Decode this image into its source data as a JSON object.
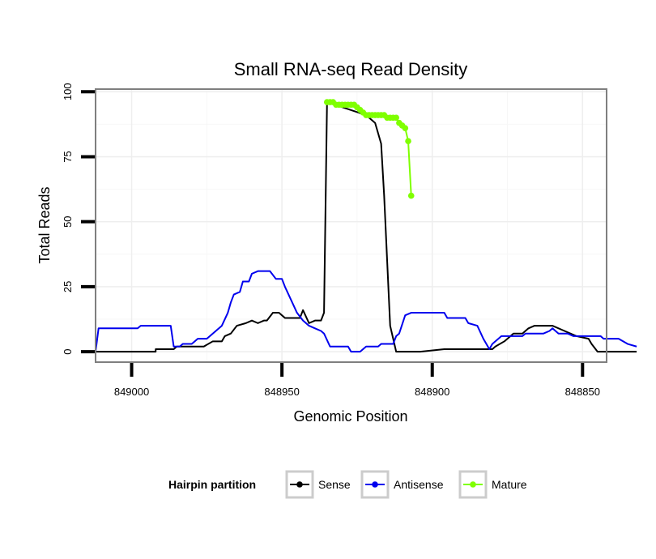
{
  "chart_data": {
    "type": "line",
    "title": "Small RNA-seq Read Density",
    "xlabel": "Genomic Position",
    "ylabel": "Total Reads",
    "x_reversed": true,
    "xlim": [
      849012,
      848842
    ],
    "ylim": [
      -4,
      101
    ],
    "x_ticks": [
      849000,
      848950,
      848900,
      848850
    ],
    "x_tick_labels": [
      "849000",
      "848950",
      "848900",
      "848850"
    ],
    "y_ticks": [
      0,
      25,
      50,
      75,
      100
    ],
    "y_tick_labels": [
      "0",
      "25",
      "50",
      "75",
      "100"
    ],
    "grid": true,
    "legend": {
      "title": "Hairpin partition",
      "position": "bottom",
      "entries": [
        "Sense",
        "Antisense",
        "Mature"
      ]
    },
    "series": [
      {
        "name": "Sense",
        "color": "#000000",
        "points": [
          [
            849012,
            0
          ],
          [
            848999,
            0
          ],
          [
            848992,
            0
          ],
          [
            848992,
            1
          ],
          [
            848986,
            1
          ],
          [
            848985,
            2
          ],
          [
            848976,
            2
          ],
          [
            848973,
            4
          ],
          [
            848970,
            4
          ],
          [
            848969,
            6
          ],
          [
            848967,
            7
          ],
          [
            848965,
            10
          ],
          [
            848962,
            11
          ],
          [
            848960,
            12
          ],
          [
            848958,
            11
          ],
          [
            848956,
            12
          ],
          [
            848955,
            12
          ],
          [
            848953,
            15
          ],
          [
            848951,
            15
          ],
          [
            848949,
            13
          ],
          [
            848946,
            13
          ],
          [
            848944,
            13
          ],
          [
            848943,
            16
          ],
          [
            848941,
            11
          ],
          [
            848939,
            12
          ],
          [
            848937,
            12
          ],
          [
            848936,
            15
          ],
          [
            848935,
            96
          ],
          [
            848922,
            91
          ],
          [
            848919,
            88
          ],
          [
            848917,
            80
          ],
          [
            848916,
            60
          ],
          [
            848914,
            10
          ],
          [
            848912,
            0
          ],
          [
            848906,
            0
          ],
          [
            848904,
            0
          ],
          [
            848896,
            1
          ],
          [
            848880,
            1
          ],
          [
            848879,
            2
          ],
          [
            848876,
            4
          ],
          [
            848873,
            7
          ],
          [
            848870,
            7
          ],
          [
            848868,
            9
          ],
          [
            848866,
            10
          ],
          [
            848860,
            10
          ],
          [
            848856,
            8
          ],
          [
            848852,
            6
          ],
          [
            848848,
            5
          ],
          [
            848847,
            3
          ],
          [
            848845,
            0
          ],
          [
            848832,
            0
          ]
        ]
      },
      {
        "name": "Antisense",
        "color": "#0000ee",
        "points": [
          [
            849012,
            0
          ],
          [
            849011,
            9
          ],
          [
            848998,
            9
          ],
          [
            848997,
            10
          ],
          [
            848987,
            10
          ],
          [
            848986,
            2
          ],
          [
            848984,
            2
          ],
          [
            848983,
            3
          ],
          [
            848980,
            3
          ],
          [
            848978,
            5
          ],
          [
            848975,
            5
          ],
          [
            848973,
            7
          ],
          [
            848970,
            10
          ],
          [
            848968,
            15
          ],
          [
            848967,
            19
          ],
          [
            848966,
            22
          ],
          [
            848964,
            23
          ],
          [
            848963,
            27
          ],
          [
            848961,
            27
          ],
          [
            848960,
            30
          ],
          [
            848958,
            31
          ],
          [
            848954,
            31
          ],
          [
            848952,
            28
          ],
          [
            848950,
            28
          ],
          [
            848949,
            25
          ],
          [
            848947,
            20
          ],
          [
            848945,
            15
          ],
          [
            848943,
            12
          ],
          [
            848941,
            10
          ],
          [
            848939,
            9
          ],
          [
            848937,
            8
          ],
          [
            848936,
            7
          ],
          [
            848934,
            2
          ],
          [
            848932,
            2
          ],
          [
            848928,
            2
          ],
          [
            848927,
            0
          ],
          [
            848924,
            0
          ],
          [
            848922,
            2
          ],
          [
            848918,
            2
          ],
          [
            848917,
            3
          ],
          [
            848913,
            3
          ],
          [
            848912,
            6
          ],
          [
            848911,
            7
          ],
          [
            848909,
            14
          ],
          [
            848907,
            15
          ],
          [
            848896,
            15
          ],
          [
            848895,
            13
          ],
          [
            848889,
            13
          ],
          [
            848888,
            11
          ],
          [
            848885,
            10
          ],
          [
            848883,
            5
          ],
          [
            848882,
            3
          ],
          [
            848881,
            1
          ],
          [
            848880,
            3
          ],
          [
            848878,
            5
          ],
          [
            848877,
            6
          ],
          [
            848870,
            6
          ],
          [
            848869,
            7
          ],
          [
            848863,
            7
          ],
          [
            848861,
            8
          ],
          [
            848860,
            9
          ],
          [
            848858,
            7
          ],
          [
            848855,
            7
          ],
          [
            848853,
            6
          ],
          [
            848844,
            6
          ],
          [
            848843,
            5
          ],
          [
            848838,
            5
          ],
          [
            848835,
            3
          ],
          [
            848832,
            2
          ]
        ]
      },
      {
        "name": "Mature",
        "color": "#7fff00",
        "markers": true,
        "points": [
          [
            848935,
            96
          ],
          [
            848934,
            96
          ],
          [
            848933,
            96
          ],
          [
            848932,
            95
          ],
          [
            848931,
            95
          ],
          [
            848930,
            95
          ],
          [
            848929,
            95
          ],
          [
            848928,
            95
          ],
          [
            848927,
            95
          ],
          [
            848926,
            95
          ],
          [
            848925,
            94
          ],
          [
            848924,
            93
          ],
          [
            848923,
            92
          ],
          [
            848922,
            91
          ],
          [
            848921,
            91
          ],
          [
            848920,
            91
          ],
          [
            848919,
            91
          ],
          [
            848918,
            91
          ],
          [
            848917,
            91
          ],
          [
            848916,
            91
          ],
          [
            848915,
            90
          ],
          [
            848914,
            90
          ],
          [
            848913,
            90
          ],
          [
            848912,
            90
          ],
          [
            848911,
            88
          ],
          [
            848910,
            87
          ],
          [
            848909,
            86
          ],
          [
            848908,
            81
          ],
          [
            848907,
            60
          ]
        ]
      }
    ]
  }
}
